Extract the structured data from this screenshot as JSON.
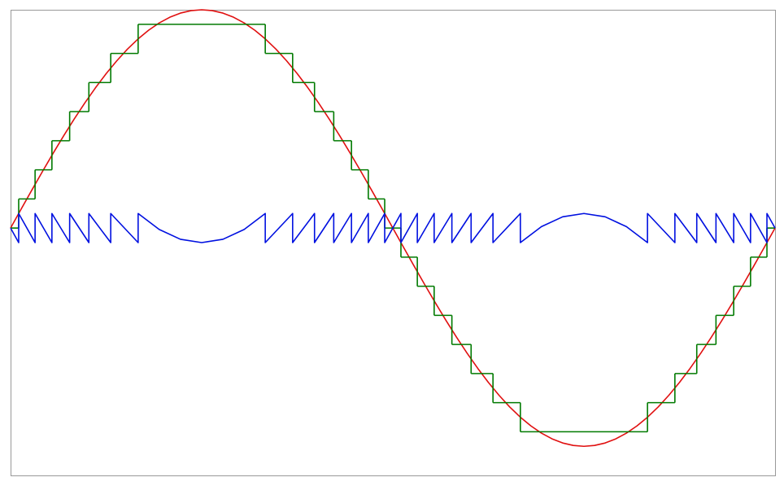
{
  "chart_data": {
    "type": "line",
    "xlim": [
      0,
      360
    ],
    "ylim": [
      -8.5,
      7.5
    ],
    "series": [
      {
        "color": "#e01010",
        "x": [
          0,
          5,
          10,
          15,
          20,
          25,
          30,
          35,
          40,
          45,
          50,
          55,
          60,
          65,
          70,
          75,
          80,
          85,
          90,
          95,
          100,
          105,
          110,
          115,
          120,
          125,
          130,
          135,
          140,
          145,
          150,
          155,
          160,
          165,
          170,
          175,
          180,
          185,
          190,
          195,
          200,
          205,
          210,
          215,
          220,
          225,
          230,
          235,
          240,
          245,
          250,
          255,
          260,
          265,
          270,
          275,
          280,
          285,
          290,
          295,
          300,
          305,
          310,
          315,
          320,
          325,
          330,
          335,
          340,
          345,
          350,
          355,
          360
        ],
        "values": [
          0,
          0.654,
          1.302,
          1.941,
          2.565,
          3.17,
          3.75,
          4.302,
          4.821,
          5.303,
          5.745,
          6.144,
          6.495,
          6.797,
          7.048,
          7.244,
          7.386,
          7.471,
          7.5,
          7.471,
          7.386,
          7.244,
          7.048,
          6.797,
          6.495,
          6.144,
          5.745,
          5.303,
          4.821,
          4.302,
          3.75,
          3.17,
          2.565,
          1.941,
          1.302,
          0.654,
          0,
          -0.654,
          -1.302,
          -1.941,
          -2.565,
          -3.17,
          -3.75,
          -4.302,
          -4.821,
          -5.303,
          -5.745,
          -6.144,
          -6.495,
          -6.797,
          -7.048,
          -7.244,
          -7.386,
          -7.471,
          -7.5,
          -7.471,
          -7.386,
          -7.244,
          -7.048,
          -6.797,
          -6.495,
          -6.144,
          -5.745,
          -5.303,
          -4.821,
          -4.302,
          -3.75,
          -3.17,
          -2.565,
          -1.941,
          -1.302,
          -0.654,
          0
        ]
      },
      {
        "color": "#007a00",
        "step": "post",
        "x": [
          0,
          3.82,
          11.54,
          19.47,
          27.82,
          36.87,
          47.17,
          60.07,
          119.93,
          132.83,
          143.13,
          152.18,
          160.53,
          168.46,
          176.18,
          183.82,
          191.54,
          199.47,
          207.82,
          216.87,
          227.17,
          240.07,
          299.93,
          312.83,
          323.13,
          332.18,
          340.53,
          348.46,
          356.18
        ],
        "values": [
          0,
          1,
          2,
          3,
          4,
          5,
          6,
          7,
          6,
          5,
          4,
          3,
          2,
          1,
          0,
          -1,
          -2,
          -3,
          -4,
          -5,
          -6,
          -7,
          -6,
          -5,
          -4,
          -3,
          -2,
          -1,
          0
        ]
      },
      {
        "color": "#0010e0",
        "x": [
          0,
          3.82,
          3.82,
          11.54,
          11.54,
          19.47,
          19.47,
          27.82,
          27.82,
          36.87,
          36.87,
          47.17,
          47.17,
          60.07,
          60.07,
          70,
          80,
          90,
          100,
          110,
          119.93,
          119.93,
          132.83,
          132.83,
          143.13,
          143.13,
          152.18,
          152.18,
          160.53,
          160.53,
          168.46,
          168.46,
          176.18,
          176.18,
          183.82,
          183.82,
          191.54,
          191.54,
          199.47,
          199.47,
          207.82,
          207.82,
          216.87,
          216.87,
          227.17,
          227.17,
          240.07,
          240.07,
          250,
          260,
          270,
          280,
          290,
          299.93,
          299.93,
          312.83,
          312.83,
          323.13,
          323.13,
          332.18,
          332.18,
          340.53,
          340.53,
          348.46,
          348.46,
          356.18,
          356.18,
          360
        ],
        "values": [
          0,
          -0.5,
          0.5,
          -0.5,
          0.5,
          -0.5,
          0.5,
          -0.5,
          0.5,
          -0.5,
          0.5,
          -0.5,
          0.5,
          -0.5,
          0.5,
          -0.048,
          -0.386,
          -0.5,
          -0.386,
          -0.048,
          0.5,
          -0.5,
          0.5,
          -0.5,
          0.5,
          -0.5,
          0.5,
          -0.5,
          0.5,
          -0.5,
          0.5,
          -0.5,
          0.5,
          -0.5,
          0.5,
          -0.5,
          0.5,
          -0.5,
          0.5,
          -0.5,
          0.5,
          -0.5,
          0.5,
          -0.5,
          0.5,
          -0.5,
          0.5,
          -0.5,
          0.048,
          0.386,
          0.5,
          0.386,
          0.048,
          -0.5,
          0.5,
          -0.5,
          0.5,
          -0.5,
          0.5,
          -0.5,
          0.5,
          -0.5,
          0.5,
          -0.5,
          0.5,
          -0.5,
          0.5,
          0
        ]
      }
    ]
  }
}
